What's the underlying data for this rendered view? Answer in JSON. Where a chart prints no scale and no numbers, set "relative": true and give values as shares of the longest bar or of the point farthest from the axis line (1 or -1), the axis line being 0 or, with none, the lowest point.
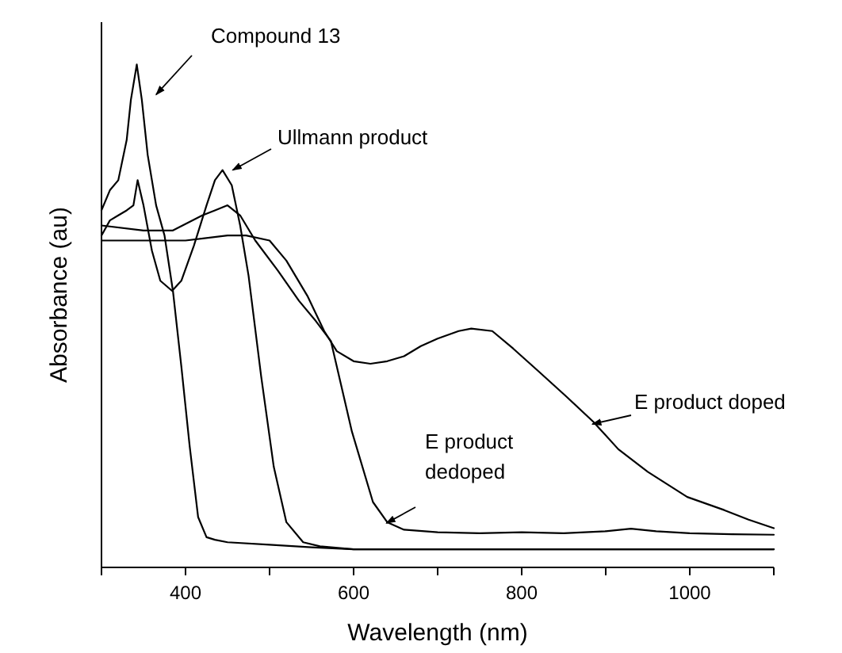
{
  "chart_data": {
    "type": "line",
    "relative": true,
    "xlabel": "Wavelength (nm)",
    "ylabel": "Absorbance (au)",
    "xlim": [
      300,
      1100
    ],
    "xticks": [
      {
        "value": 300,
        "label": null
      },
      400,
      {
        "value": 500,
        "label": null
      },
      600,
      {
        "value": 700,
        "label": null
      },
      800,
      {
        "value": 900,
        "label": null
      },
      1000,
      {
        "value": 1100,
        "label": null
      }
    ],
    "grid": false,
    "marker": "none",
    "line_style": "solid",
    "series": [
      {
        "name": "Compound 13",
        "color": "#000000",
        "x": [
          300,
          310,
          320,
          330,
          335,
          342,
          348,
          355,
          365,
          375,
          385,
          395,
          405,
          415,
          425,
          435,
          450,
          500,
          550,
          600,
          700,
          800,
          900,
          1000,
          1100
        ],
        "values": [
          0.71,
          0.75,
          0.77,
          0.85,
          0.93,
          1.0,
          0.93,
          0.82,
          0.72,
          0.66,
          0.55,
          0.4,
          0.24,
          0.1,
          0.06,
          0.055,
          0.05,
          0.045,
          0.04,
          0.036,
          0.036,
          0.036,
          0.036,
          0.036,
          0.036
        ]
      },
      {
        "name": "Ullmann product",
        "color": "#000000",
        "x": [
          300,
          310,
          320,
          330,
          338,
          343,
          350,
          360,
          370,
          384,
          395,
          410,
          425,
          435,
          444,
          455,
          465,
          475,
          490,
          505,
          520,
          540,
          560,
          600,
          700,
          800,
          900,
          1000,
          1100
        ],
        "values": [
          0.66,
          0.69,
          0.7,
          0.71,
          0.72,
          0.77,
          0.72,
          0.63,
          0.57,
          0.55,
          0.57,
          0.64,
          0.72,
          0.77,
          0.79,
          0.76,
          0.68,
          0.58,
          0.38,
          0.2,
          0.09,
          0.05,
          0.042,
          0.036,
          0.036,
          0.036,
          0.036,
          0.036,
          0.036
        ]
      },
      {
        "name": "E product doped",
        "color": "#000000",
        "x": [
          300,
          350,
          400,
          450,
          472,
          500,
          520,
          545,
          565,
          580,
          600,
          620,
          640,
          660,
          680,
          700,
          725,
          740,
          765,
          790,
          820,
          853,
          885,
          915,
          950,
          997,
          1041,
          1070,
          1100
        ],
        "values": [
          0.65,
          0.65,
          0.65,
          0.66,
          0.66,
          0.65,
          0.61,
          0.54,
          0.47,
          0.43,
          0.41,
          0.405,
          0.41,
          0.42,
          0.44,
          0.455,
          0.47,
          0.475,
          0.47,
          0.435,
          0.39,
          0.34,
          0.29,
          0.235,
          0.19,
          0.14,
          0.114,
          0.095,
          0.078
        ]
      },
      {
        "name": "E product dedoped",
        "color": "#000000",
        "x": [
          300,
          350,
          385,
          420,
          435,
          450,
          465,
          483,
          510,
          535,
          555,
          573,
          598,
          623,
          640,
          660,
          700,
          750,
          800,
          850,
          900,
          930,
          960,
          1000,
          1050,
          1100
        ],
        "values": [
          0.68,
          0.67,
          0.67,
          0.7,
          0.71,
          0.72,
          0.7,
          0.65,
          0.59,
          0.53,
          0.49,
          0.45,
          0.27,
          0.13,
          0.09,
          0.075,
          0.07,
          0.068,
          0.07,
          0.068,
          0.072,
          0.077,
          0.072,
          0.068,
          0.066,
          0.065
        ]
      }
    ]
  }
}
